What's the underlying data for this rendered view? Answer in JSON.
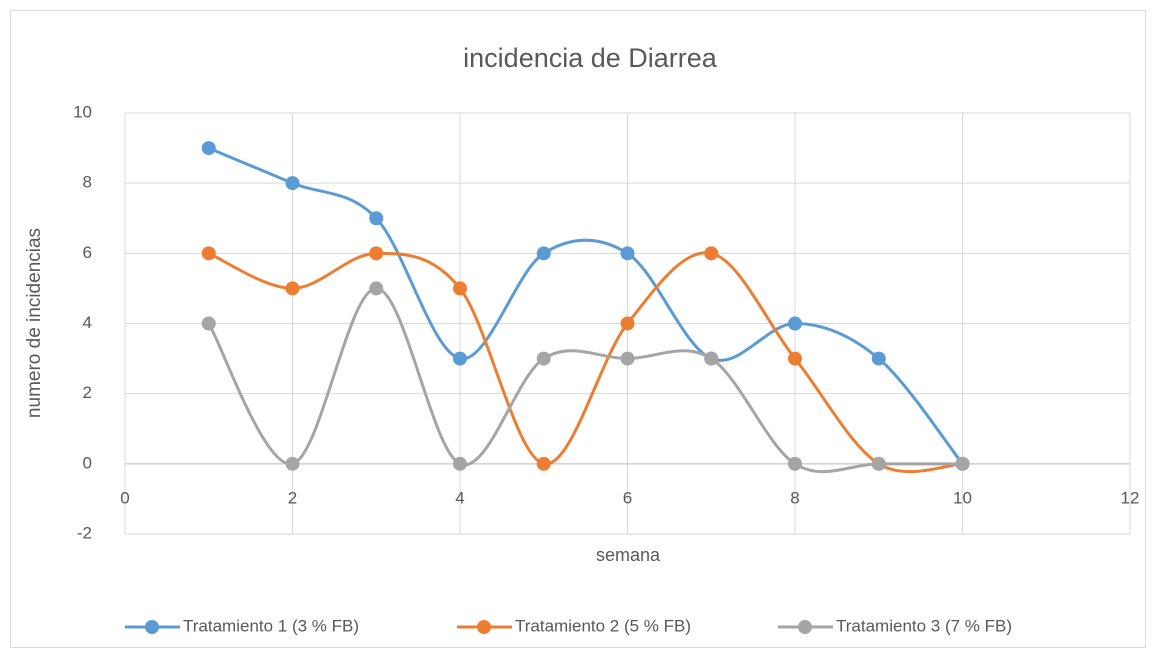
{
  "chart_data": {
    "type": "scatter-smooth",
    "title": "incidencia de Diarrea",
    "x_label": "semana",
    "y_label": "numero de incidencias",
    "x": [
      1,
      2,
      3,
      4,
      5,
      6,
      7,
      8,
      9,
      10
    ],
    "series": [
      {
        "name": "Tratamiento 1 (3 % FB)",
        "color": "#5b9bd5",
        "values": [
          9,
          8,
          7,
          3,
          6,
          6,
          3,
          4,
          3,
          0
        ]
      },
      {
        "name": "Tratamiento 2 (5 % FB)",
        "color": "#ed7d31",
        "values": [
          6,
          5,
          6,
          5,
          0,
          4,
          6,
          3,
          0,
          0
        ]
      },
      {
        "name": "Tratamiento 3 (7 % FB)",
        "color": "#a5a5a5",
        "values": [
          4,
          0,
          5,
          0,
          3,
          3,
          3,
          0,
          0,
          0
        ]
      }
    ],
    "xlim": [
      0,
      12
    ],
    "xticks": [
      0,
      2,
      4,
      6,
      8,
      10,
      12
    ],
    "ylim": [
      -2,
      10
    ],
    "yticks": [
      -2,
      0,
      2,
      4,
      6,
      8,
      10
    ],
    "grid": true,
    "legend": "bottom"
  }
}
